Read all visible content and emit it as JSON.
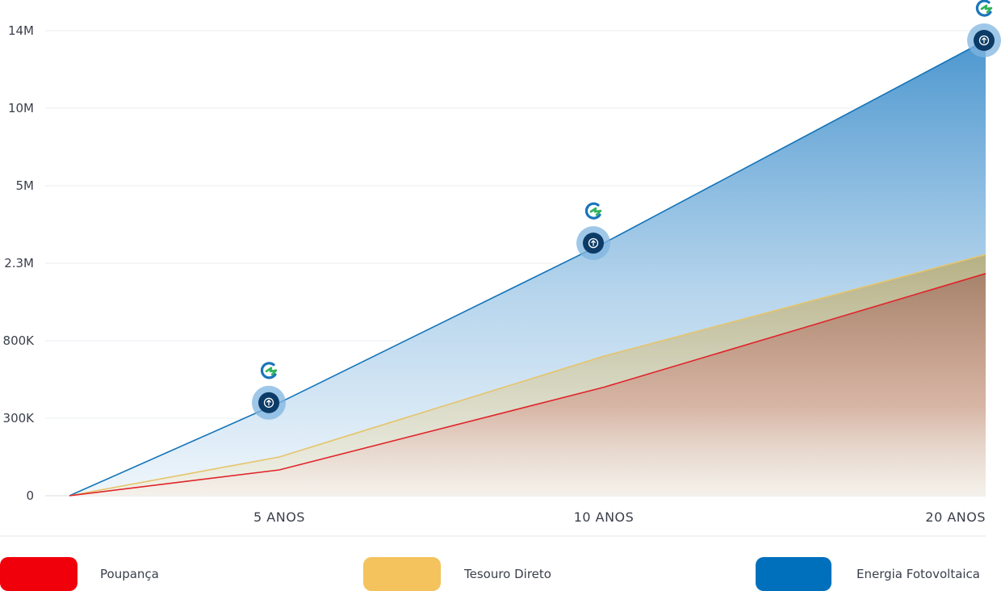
{
  "chart_data": {
    "type": "area",
    "categories": [
      "",
      "5 ANOS",
      "10 ANOS",
      "20 ANOS"
    ],
    "y_tick_labels": [
      "0",
      "300K",
      "800K",
      "2.3M",
      "5M",
      "10M",
      "14M"
    ],
    "series": [
      {
        "name": "Energia Fotovoltaica",
        "values": [
          0,
          400000,
          3000000,
          13500000
        ],
        "color": "#0072bc"
      },
      {
        "name": "Tesouro Direto",
        "values": [
          0,
          150000,
          700000,
          2600000
        ],
        "color": "#f2c45a"
      },
      {
        "name": "Poupança",
        "values": [
          0,
          100000,
          500000,
          2100000
        ],
        "color": "#e8101a"
      }
    ],
    "marker_icons": [
      "energy-logo-icon",
      "arrow-up-icon"
    ],
    "y_scale": "nonlinear",
    "grid": true,
    "legend_position": "bottom"
  },
  "legend": [
    {
      "label": "Poupança",
      "color": "#f0000a"
    },
    {
      "label": "Tesouro Direto",
      "color": "#f4c35e"
    },
    {
      "label": "Energia Fotovoltaica",
      "color": "#0070bd"
    }
  ]
}
